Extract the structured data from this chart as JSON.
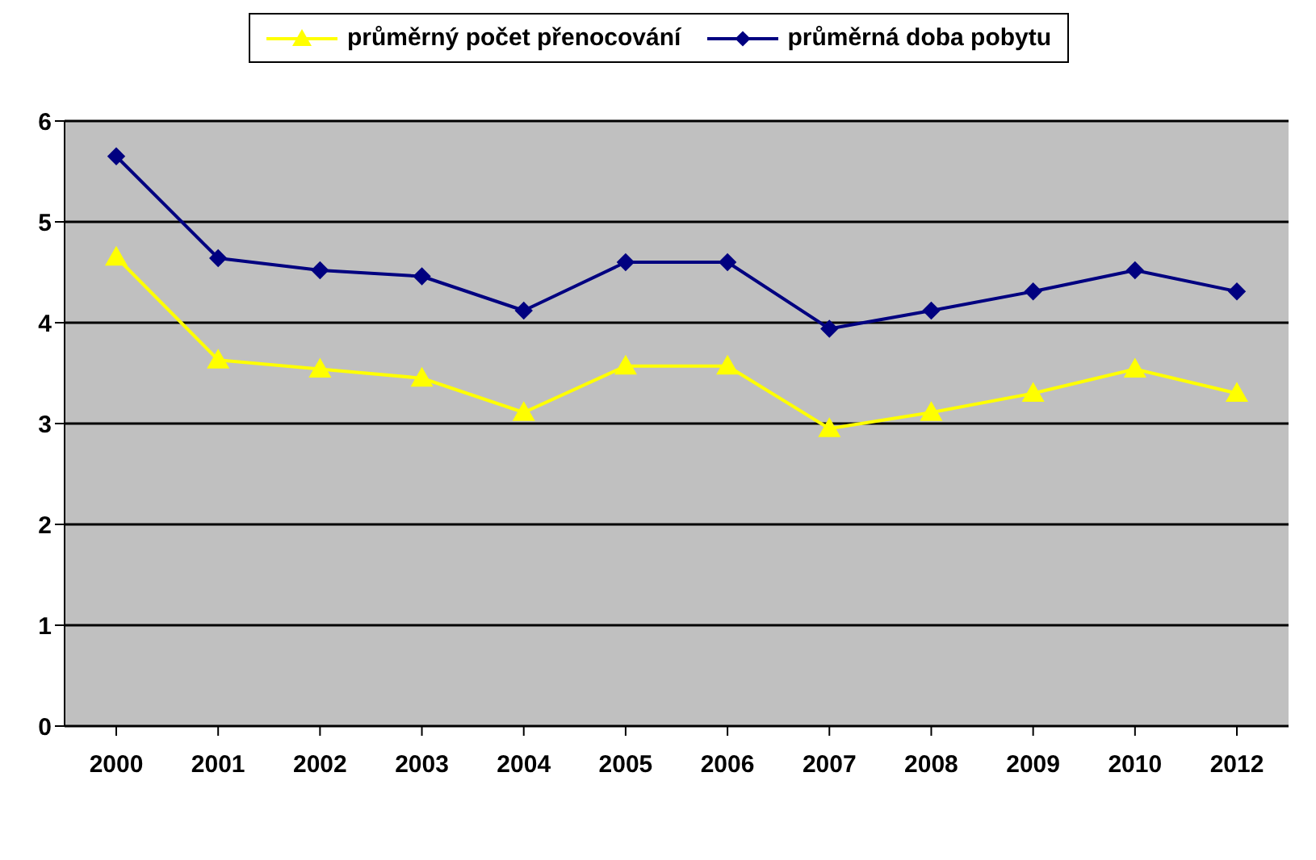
{
  "chart_data": {
    "type": "line",
    "categories": [
      "2000",
      "2001",
      "2002",
      "2003",
      "2004",
      "2005",
      "2006",
      "2007",
      "2008",
      "2009",
      "2010",
      "2012"
    ],
    "series": [
      {
        "name": "průměrný počet přenocování",
        "color": "#ffff00",
        "marker": "triangle",
        "values": [
          4.65,
          3.63,
          3.54,
          3.45,
          3.11,
          3.57,
          3.57,
          2.95,
          3.11,
          3.3,
          3.54,
          3.3
        ]
      },
      {
        "name": "průměrná doba pobytu",
        "color": "#000080",
        "marker": "diamond",
        "values": [
          5.65,
          4.64,
          4.52,
          4.46,
          4.12,
          4.6,
          4.6,
          3.94,
          4.12,
          4.31,
          4.52,
          4.31
        ]
      }
    ],
    "ylim": [
      0,
      6
    ],
    "yticks": [
      0,
      1,
      2,
      3,
      4,
      5,
      6
    ],
    "grid": "y",
    "legend": "top"
  }
}
